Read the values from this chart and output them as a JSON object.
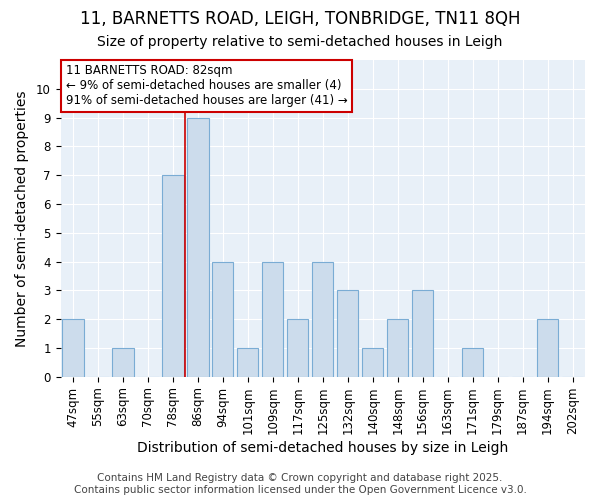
{
  "title_line1": "11, BARNETTS ROAD, LEIGH, TONBRIDGE, TN11 8QH",
  "title_line2": "Size of property relative to semi-detached houses in Leigh",
  "xlabel": "Distribution of semi-detached houses by size in Leigh",
  "ylabel": "Number of semi-detached properties",
  "categories": [
    "47sqm",
    "55sqm",
    "63sqm",
    "70sqm",
    "78sqm",
    "86sqm",
    "94sqm",
    "101sqm",
    "109sqm",
    "117sqm",
    "125sqm",
    "132sqm",
    "140sqm",
    "148sqm",
    "156sqm",
    "163sqm",
    "171sqm",
    "179sqm",
    "187sqm",
    "194sqm",
    "202sqm"
  ],
  "values": [
    2,
    0,
    1,
    0,
    7,
    9,
    4,
    1,
    4,
    2,
    4,
    3,
    1,
    2,
    3,
    0,
    1,
    0,
    0,
    2,
    0
  ],
  "bar_color": "#ccdcec",
  "bar_edge_color": "#7aacd4",
  "highlight_index": 4,
  "highlight_line_color": "#cc0000",
  "annotation_text": "11 BARNETTS ROAD: 82sqm\n← 9% of semi-detached houses are smaller (4)\n91% of semi-detached houses are larger (41) →",
  "annotation_box_color": "#ffffff",
  "annotation_box_edge_color": "#cc0000",
  "ylim": [
    0,
    11
  ],
  "yticks": [
    0,
    1,
    2,
    3,
    4,
    5,
    6,
    7,
    8,
    9,
    10,
    11
  ],
  "footer_text": "Contains HM Land Registry data © Crown copyright and database right 2025.\nContains public sector information licensed under the Open Government Licence v3.0.",
  "fig_bg_color": "#ffffff",
  "plot_bg_color": "#e8f0f8",
  "grid_color": "#ffffff",
  "title_fontsize": 12,
  "subtitle_fontsize": 10,
  "axis_label_fontsize": 10,
  "tick_fontsize": 8.5,
  "annotation_fontsize": 8.5,
  "footer_fontsize": 7.5
}
